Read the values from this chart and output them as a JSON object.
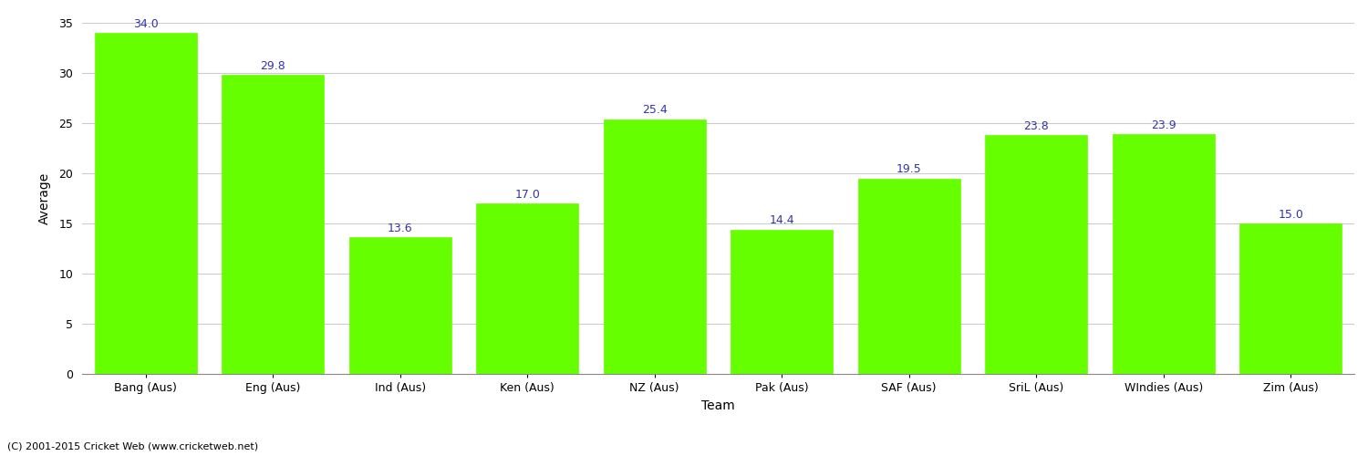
{
  "categories": [
    "Bang (Aus)",
    "Eng (Aus)",
    "Ind (Aus)",
    "Ken (Aus)",
    "NZ (Aus)",
    "Pak (Aus)",
    "SAF (Aus)",
    "SriL (Aus)",
    "WIndies (Aus)",
    "Zim (Aus)"
  ],
  "values": [
    34.0,
    29.8,
    13.6,
    17.0,
    25.4,
    14.4,
    19.5,
    23.8,
    23.9,
    15.0
  ],
  "bar_color": "#66ff00",
  "bar_edge_color": "#66ff00",
  "label_color": "#3333aa",
  "xlabel": "Team",
  "ylabel": "Average",
  "ylim": [
    0,
    35
  ],
  "yticks": [
    0,
    5,
    10,
    15,
    20,
    25,
    30,
    35
  ],
  "grid_color": "#cccccc",
  "bg_color": "#ffffff",
  "footer": "(C) 2001-2015 Cricket Web (www.cricketweb.net)",
  "label_fontsize": 9,
  "axis_label_fontsize": 10,
  "tick_fontsize": 9,
  "footer_fontsize": 8,
  "bar_width": 0.8
}
